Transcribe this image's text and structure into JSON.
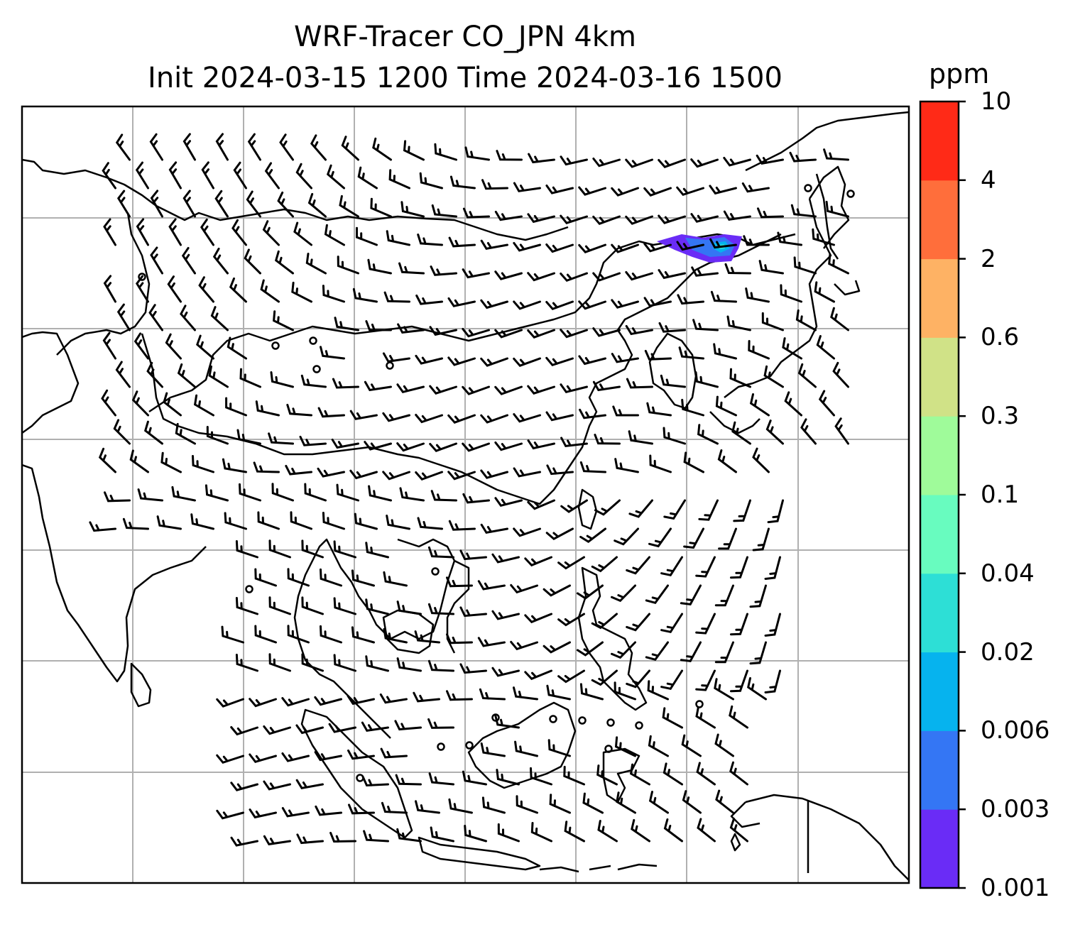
{
  "title": {
    "line1": "WRF-Tracer CO_JPN 4km",
    "line2": "Init 2024-03-15 1200 Time 2024-03-16 1500"
  },
  "colorbar": {
    "unit": "ppm",
    "levels": [
      "0.001",
      "0.003",
      "0.006",
      "0.02",
      "0.04",
      "0.1",
      "0.3",
      "0.6",
      "2",
      "4",
      "10"
    ],
    "colors": [
      "#6a2cf6",
      "#3476f4",
      "#06b3ee",
      "#2ddfd6",
      "#68fcbf",
      "#9ffb9a",
      "#d0e287",
      "#feb264",
      "#ff6e3b",
      "#ff2a17"
    ]
  },
  "map": {
    "gridlines": true,
    "overlay": "wind barbs",
    "plume": {
      "max_level": "0.02",
      "dominant_color": "#3476f4"
    }
  }
}
